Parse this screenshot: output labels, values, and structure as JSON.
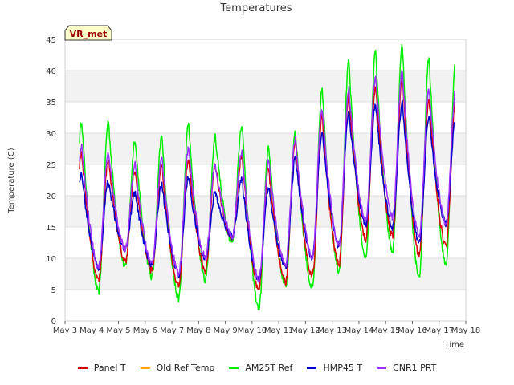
{
  "chart_data": {
    "type": "line",
    "title": "Temperatures",
    "xlabel": "Time",
    "ylabel": "Temperature (C)",
    "badge": "VR_met",
    "ylim": [
      0,
      45
    ],
    "yticks": [
      0,
      5,
      10,
      15,
      20,
      25,
      30,
      35,
      40,
      45
    ],
    "xlim": [
      0,
      15
    ],
    "xtick_labels": [
      "May 3",
      "May 4",
      "May 5",
      "May 6",
      "May 7",
      "May 8",
      "May 9",
      "May 10",
      "May 11",
      "May 12",
      "May 13",
      "May 14",
      "May 15",
      "May 16",
      "May 17",
      "May 18"
    ],
    "grid": true,
    "legend_position": "bottom",
    "daily": {
      "day_index": [
        0,
        1,
        2,
        3,
        4,
        5,
        6,
        7,
        8,
        9,
        10,
        11,
        12,
        13,
        14
      ],
      "panel_t_min": [
        6.5,
        6.5,
        9.5,
        8.0,
        5.5,
        8.0,
        13.0,
        5.0,
        6.0,
        7.0,
        9.0,
        13.0,
        13.5,
        10.5,
        12.0
      ],
      "panel_t_max": [
        27.0,
        26.0,
        24.0,
        25.0,
        26.0,
        25.0,
        26.5,
        24.5,
        29.0,
        32.5,
        36.0,
        37.5,
        39.0,
        35.5,
        35.5
      ],
      "am25t_min": [
        5.0,
        4.5,
        8.5,
        7.0,
        3.5,
        6.5,
        12.5,
        2.0,
        5.5,
        5.0,
        8.0,
        10.0,
        11.0,
        7.0,
        9.0
      ],
      "am25t_max": [
        32.0,
        32.0,
        29.0,
        29.5,
        31.5,
        29.5,
        31.5,
        28.0,
        30.5,
        37.0,
        41.5,
        43.0,
        44.0,
        42.0,
        42.0
      ],
      "hmp45_min": [
        9.5,
        8.5,
        11.5,
        9.0,
        7.5,
        10.0,
        13.5,
        6.5,
        8.5,
        10.0,
        12.0,
        15.5,
        15.0,
        12.5,
        15.5
      ],
      "hmp45_max": [
        23.5,
        22.5,
        20.5,
        22.0,
        23.0,
        20.5,
        22.5,
        21.5,
        26.0,
        30.0,
        33.5,
        34.5,
        35.0,
        32.5,
        32.5
      ],
      "cnr1_min": [
        9.0,
        8.5,
        11.5,
        9.0,
        7.5,
        10.0,
        13.5,
        6.5,
        9.0,
        10.0,
        12.0,
        16.0,
        16.5,
        13.5,
        15.5
      ],
      "cnr1_max": [
        28.0,
        27.0,
        25.0,
        26.0,
        27.5,
        25.0,
        27.0,
        25.5,
        29.0,
        34.0,
        37.0,
        39.0,
        40.0,
        37.0,
        37.0
      ]
    },
    "series": [
      {
        "name": "Panel T",
        "color": "#dd0000",
        "key": "panel_t"
      },
      {
        "name": "Old Ref Temp",
        "color": "#ffa500",
        "key": "none"
      },
      {
        "name": "AM25T Ref",
        "color": "#00ee00",
        "key": "am25t"
      },
      {
        "name": "HMP45 T",
        "color": "#0000cc",
        "key": "hmp45"
      },
      {
        "name": "CNR1 PRT",
        "color": "#9b30ff",
        "key": "cnr1"
      }
    ]
  }
}
